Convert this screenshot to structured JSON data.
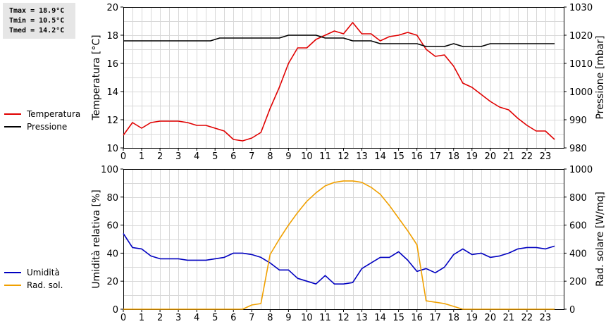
{
  "stats": {
    "tmax": "Tmax = 18.9°C",
    "tmin": "Tmin = 10.5°C",
    "tmed": "Tmed = 14.2°C"
  },
  "colors": {
    "temperature": "#e00000",
    "pressure": "#000000",
    "humidity": "#0000c0",
    "solar": "#f0a000",
    "grid": "#d8d8d8",
    "stats_bg": "#e6e6e6"
  },
  "chart_data": [
    {
      "type": "line",
      "title": "",
      "x_ticks": [
        0,
        1,
        2,
        3,
        4,
        5,
        6,
        7,
        8,
        9,
        10,
        11,
        12,
        13,
        14,
        15,
        16,
        17,
        18,
        19,
        20,
        21,
        22,
        23
      ],
      "xlim": [
        0,
        24
      ],
      "ylabel_left": "Temperatura [°C]",
      "ylabel_right": "Pressione [mbar]",
      "ylim_left": [
        10,
        20
      ],
      "ylim_right": [
        980,
        1030
      ],
      "y_ticks_left": [
        10,
        12,
        14,
        16,
        18,
        20
      ],
      "y_ticks_right": [
        980,
        990,
        1000,
        1010,
        1020,
        1030
      ],
      "grid": true,
      "legend_position": "left",
      "series": [
        {
          "name": "Temperatura",
          "axis": "left",
          "x": [
            0,
            0.5,
            1,
            1.5,
            2,
            2.5,
            3,
            3.5,
            4,
            4.5,
            5,
            5.5,
            6,
            6.5,
            7,
            7.5,
            8,
            8.5,
            9,
            9.5,
            10,
            10.5,
            11,
            11.5,
            12,
            12.5,
            13,
            13.5,
            14,
            14.5,
            15,
            15.5,
            16,
            16.5,
            17,
            17.5,
            18,
            18.5,
            19,
            19.5,
            20,
            20.5,
            21,
            21.5,
            22,
            22.5,
            23,
            23.5
          ],
          "values": [
            10.9,
            11.8,
            11.4,
            11.8,
            11.9,
            11.9,
            11.9,
            11.8,
            11.6,
            11.6,
            11.4,
            11.2,
            10.6,
            10.5,
            10.7,
            11.1,
            12.8,
            14.3,
            16.0,
            17.1,
            17.1,
            17.7,
            18.0,
            18.3,
            18.1,
            18.9,
            18.1,
            18.1,
            17.6,
            17.9,
            18.0,
            18.2,
            18.0,
            17.0,
            16.5,
            16.6,
            15.8,
            14.6,
            14.3,
            13.8,
            13.3,
            12.9,
            12.7,
            12.1,
            11.6,
            11.2,
            11.2,
            10.6
          ]
        },
        {
          "name": "Pressione",
          "axis": "right",
          "x": [
            0,
            1,
            2,
            3,
            4,
            4.75,
            5.25,
            6,
            7,
            8,
            8.5,
            9,
            10,
            10.5,
            11,
            11.5,
            12,
            12.5,
            13,
            13.5,
            14,
            15,
            16,
            16.5,
            17,
            17.5,
            18,
            18.5,
            19,
            19.5,
            20,
            20.5,
            21,
            22,
            23,
            23.5
          ],
          "values": [
            1018,
            1018,
            1018,
            1018,
            1018,
            1018,
            1019,
            1019,
            1019,
            1019,
            1019,
            1020,
            1020,
            1020,
            1019,
            1019,
            1019,
            1018,
            1018,
            1018,
            1017,
            1017,
            1017,
            1016,
            1016,
            1016,
            1017,
            1016,
            1016,
            1016,
            1017,
            1017,
            1017,
            1017,
            1017,
            1017
          ]
        }
      ]
    },
    {
      "type": "line",
      "title": "",
      "x_ticks": [
        0,
        1,
        2,
        3,
        4,
        5,
        6,
        7,
        8,
        9,
        10,
        11,
        12,
        13,
        14,
        15,
        16,
        17,
        18,
        19,
        20,
        21,
        22,
        23
      ],
      "xlim": [
        0,
        24
      ],
      "ylabel_left": "Umidità relativa [%]",
      "ylabel_right": "Rad. solare [W/mq]",
      "ylim_left": [
        0,
        100
      ],
      "ylim_right": [
        0,
        1000
      ],
      "y_ticks_left": [
        0,
        20,
        40,
        60,
        80,
        100
      ],
      "y_ticks_right": [
        0,
        200,
        400,
        600,
        800,
        1000
      ],
      "grid": true,
      "legend_position": "left",
      "series": [
        {
          "name": "Umidità",
          "axis": "left",
          "x": [
            0,
            0.5,
            1,
            1.5,
            2,
            2.5,
            3,
            3.5,
            4,
            4.5,
            5,
            5.5,
            6,
            6.5,
            7,
            7.5,
            8,
            8.5,
            9,
            9.5,
            10,
            10.5,
            11,
            11.5,
            12,
            12.5,
            13,
            13.5,
            14,
            14.5,
            15,
            15.5,
            16,
            16.5,
            17,
            17.5,
            18,
            18.5,
            19,
            19.5,
            20,
            20.5,
            21,
            21.5,
            22,
            22.5,
            23,
            23.5
          ],
          "values": [
            54,
            44,
            43,
            38,
            36,
            36,
            36,
            35,
            35,
            35,
            36,
            37,
            40,
            40,
            39,
            37,
            33,
            28,
            28,
            22,
            20,
            18,
            24,
            18,
            18,
            19,
            29,
            33,
            37,
            37,
            41,
            35,
            27,
            29,
            26,
            30,
            39,
            43,
            39,
            40,
            37,
            38,
            40,
            43,
            44,
            44,
            43,
            45
          ]
        },
        {
          "name": "Rad. sol.",
          "axis": "right",
          "x": [
            0,
            1,
            2,
            3,
            4,
            5,
            6,
            6.5,
            7,
            7.5,
            8,
            8.5,
            9,
            9.5,
            10,
            10.5,
            11,
            11.5,
            12,
            12.5,
            13,
            13.5,
            14,
            14.5,
            15,
            15.5,
            16,
            16.5,
            17,
            17.5,
            18,
            18.5,
            19,
            20,
            21,
            22,
            23,
            23.5
          ],
          "values": [
            0,
            0,
            0,
            0,
            0,
            0,
            0,
            0,
            30,
            40,
            390,
            500,
            600,
            690,
            770,
            830,
            880,
            905,
            915,
            915,
            905,
            870,
            820,
            740,
            650,
            560,
            460,
            60,
            50,
            40,
            20,
            0,
            0,
            0,
            0,
            0,
            0,
            0
          ]
        }
      ]
    }
  ]
}
